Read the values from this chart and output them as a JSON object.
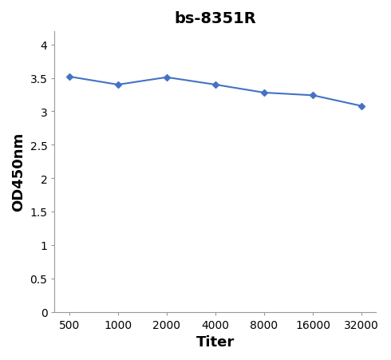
{
  "title": "bs-8351R",
  "xlabel": "Titer",
  "ylabel": "OD450nm",
  "x_positions": [
    0,
    1,
    2,
    3,
    4,
    5,
    6
  ],
  "x_tick_labels": [
    "500",
    "1000",
    "2000",
    "4000",
    "8000",
    "16000",
    "32000"
  ],
  "y_values": [
    3.52,
    3.4,
    3.51,
    3.4,
    3.28,
    3.24,
    3.08
  ],
  "y_ticks": [
    0,
    0.5,
    1,
    1.5,
    2,
    2.5,
    3,
    3.5,
    4
  ],
  "y_tick_labels": [
    "0",
    "0.5",
    "1",
    "1.5",
    "2",
    "2.5",
    "3",
    "3.5",
    "4"
  ],
  "ylim": [
    0,
    4.2
  ],
  "xlim": [
    -0.3,
    6.3
  ],
  "line_color": "#4472C4",
  "marker": "D",
  "marker_size": 4,
  "title_fontsize": 14,
  "axis_label_fontsize": 13,
  "tick_fontsize": 10,
  "background_color": "#ffffff",
  "title_fontweight": "bold"
}
